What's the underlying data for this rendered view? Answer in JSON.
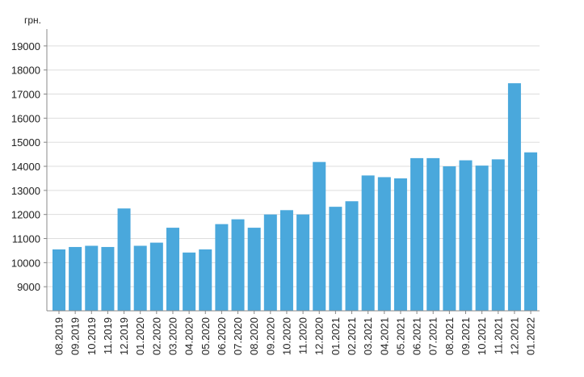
{
  "chart_data": {
    "type": "bar",
    "title": "",
    "xlabel": "",
    "ylabel": "грн.",
    "ylim": [
      8000,
      19700
    ],
    "yticks": [
      9000,
      10000,
      11000,
      12000,
      13000,
      14000,
      15000,
      16000,
      17000,
      18000,
      19000
    ],
    "grid": true,
    "bar_color": "#4aa8dc",
    "categories": [
      "08.2019",
      "09.2019",
      "10.2019",
      "11.2019",
      "12.2019",
      "01.2020",
      "02.2020",
      "03.2020",
      "04.2020",
      "05.2020",
      "06.2020",
      "07.2020",
      "08.2020",
      "09.2020",
      "10.2020",
      "11.2020",
      "12.2020",
      "01.2021",
      "02.2021",
      "03.2021",
      "04.2021",
      "05.2021",
      "06.2021",
      "07.2021",
      "08.2021",
      "09.2021",
      "10.2021",
      "11.2021",
      "12.2021",
      "01.2022"
    ],
    "values": [
      10550,
      10650,
      10700,
      10650,
      12250,
      10700,
      10830,
      11450,
      10420,
      10550,
      11600,
      11800,
      11450,
      12000,
      12180,
      12000,
      14180,
      12320,
      12550,
      13620,
      13550,
      13500,
      14340,
      14340,
      14000,
      14250,
      14030,
      14290,
      17450,
      14580
    ]
  }
}
